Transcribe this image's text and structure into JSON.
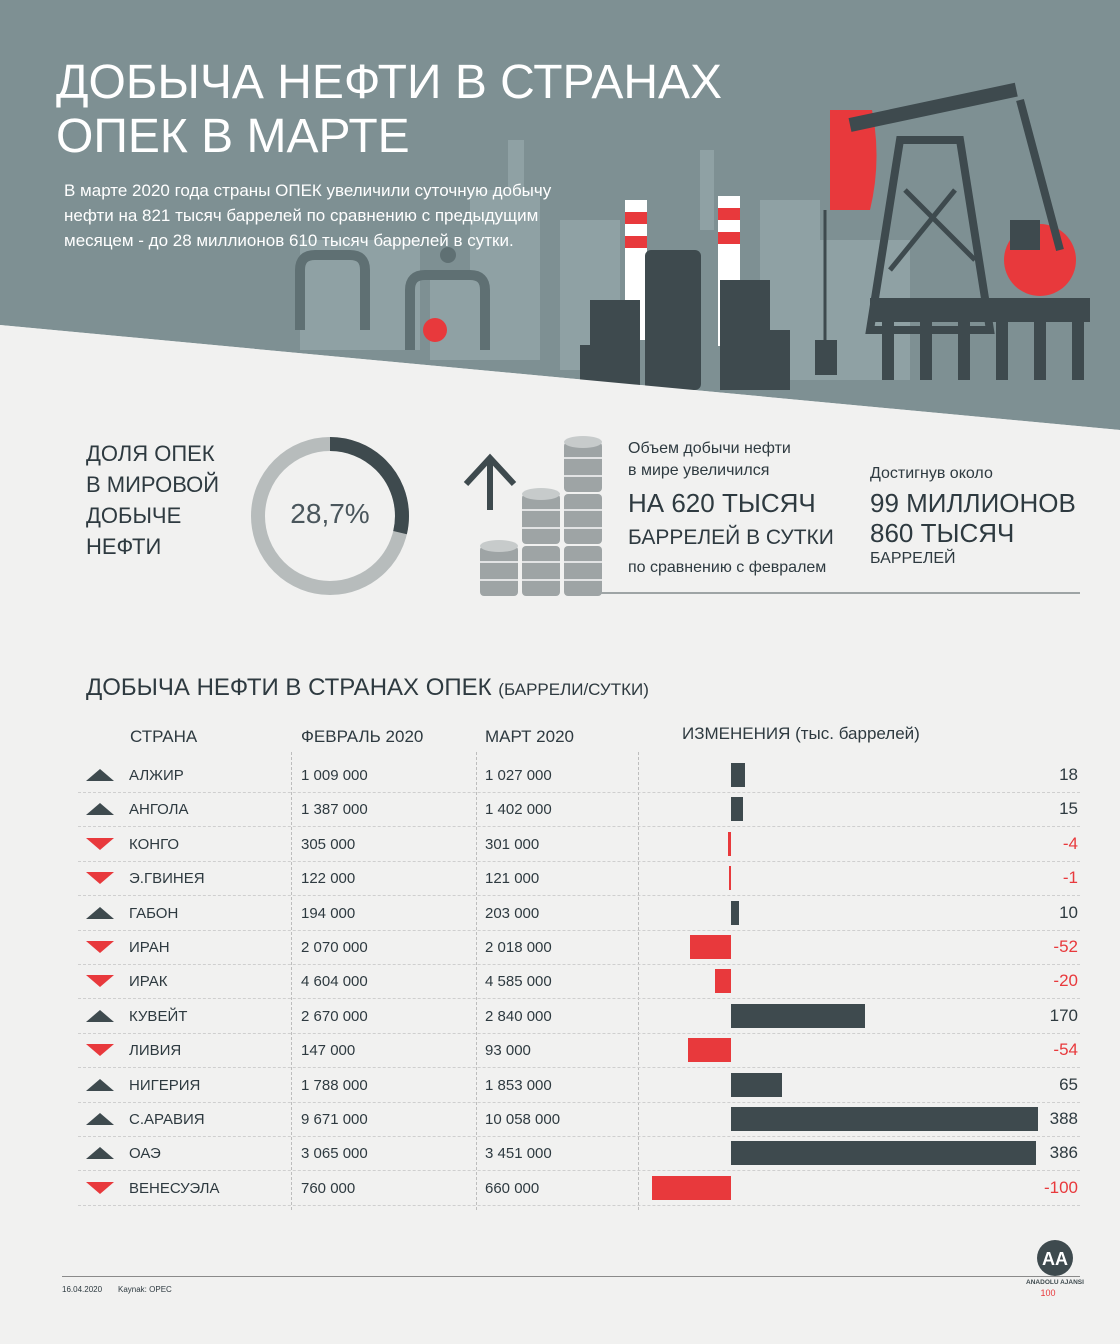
{
  "header": {
    "title_line1": "ДОБЫЧА НЕФТИ В СТРАНАХ",
    "title_line2": "ОПЕК В МАРТЕ",
    "intro": "В марте 2020 года страны ОПЕК  увеличили суточную добычу нефти на 821 тысяч баррелей по сравнению с предыдущим месяцем -  до 28 миллионов  610 тысяч баррелей в сутки."
  },
  "share": {
    "label_lines": [
      "ДОЛЯ ОПЕК",
      "В МИРОВОЙ",
      "ДОБЫЧЕ",
      "НЕФТИ"
    ],
    "value_text": "28,7%",
    "fraction": 0.287
  },
  "world": {
    "line1": "Объем добычи нефти",
    "line2": "в мире увеличился",
    "big": "НА 620 ТЫСЯЧ",
    "mid": "БАРРЕЛЕЙ В СУТКИ",
    "small": "по сравнению с февралем"
  },
  "reached": {
    "line1": "Достигнув около",
    "big1": "99 МИЛЛИОНОВ",
    "big2": "860 ТЫСЯЧ",
    "small": "БАРРЕЛЕЙ"
  },
  "table": {
    "title": "ДОБЫЧА НЕФТИ В СТРАНАХ  ОПЕК",
    "title_unit": "(БАРРЕЛИ/СУТКИ)",
    "col_country": "СТРАНА",
    "col_feb": "ФЕВРАЛЬ 2020",
    "col_mar": "МАРТ  2020",
    "col_change": "ИЗМЕНЕНИЯ (тыс. баррелей)"
  },
  "chart_data": {
    "type": "bar",
    "title": "ИЗМЕНЕНИЯ (тыс. баррелей)",
    "categories": [
      "АЛЖИР",
      "АНГОЛА",
      "КОНГО",
      "Э.ГВИНЕЯ",
      "ГАБОН",
      "ИРАН",
      "ИРАК",
      "КУВЕЙТ",
      "ЛИВИЯ",
      "НИГЕРИЯ",
      "С.АРАВИЯ",
      "ОАЭ",
      "ВЕНЕСУЭЛА"
    ],
    "series": [
      {
        "name": "ФЕВРАЛЬ 2020",
        "values": [
          "1 009 000",
          "1 387 000",
          "305 000",
          "122 000",
          "194 000",
          "2 070 000",
          "4 604 000",
          "2 670 000",
          "147 000",
          "1 788 000",
          "9 671 000",
          "3 065 000",
          "760 000"
        ]
      },
      {
        "name": "МАРТ  2020",
        "values": [
          "1 027 000",
          "1 402 000",
          "301 000",
          "121 000",
          "203 000",
          "2 018 000",
          "4 585 000",
          "2 840 000",
          "93 000",
          "1 853 000",
          "10 058 000",
          "3 451 000",
          "660 000"
        ]
      },
      {
        "name": "ИЗМЕНЕНИЯ (тыс. баррелей)",
        "values": [
          18,
          15,
          -4,
          -1,
          10,
          -52,
          -20,
          170,
          -54,
          65,
          388,
          386,
          -100
        ]
      }
    ],
    "value_labels": [
      "18",
      "15",
      "-4",
      "-1",
      "10",
      "-52",
      "-20",
      "170",
      "-54",
      "65",
      "388",
      "386",
      "-100"
    ],
    "colors": {
      "positive": "#3e4a4e",
      "negative": "#e8393c"
    }
  },
  "footer": {
    "date": "16.04.2020",
    "source": "Kaynak: OPEC",
    "logo_text": "ANADOLU AJANSI",
    "logo_mark": "AA"
  },
  "colors": {
    "hero_bg": "#7d8f92",
    "accent_red": "#e8393c",
    "dark": "#3e4a4e",
    "page_bg": "#f1f1f0"
  }
}
